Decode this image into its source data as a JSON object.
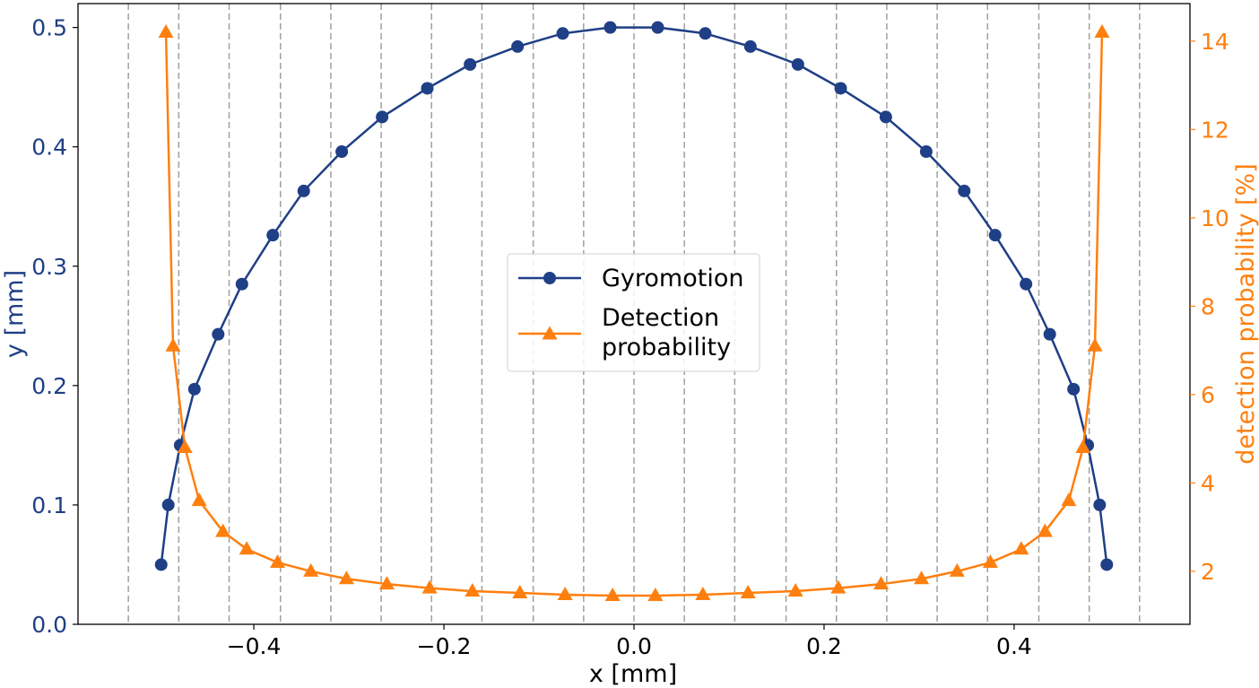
{
  "chart_data": {
    "type": "line",
    "title": "",
    "xlabel": "x [mm]",
    "ylabel": "y [mm]",
    "y2label": "detection probability [%]",
    "xlim": [
      -0.585,
      0.585
    ],
    "ylim": [
      0.0,
      0.52
    ],
    "y2lim": [
      0.8,
      14.85
    ],
    "xticks": [
      -0.4,
      -0.2,
      0.0,
      0.2,
      0.4
    ],
    "xtick_labels": [
      "−0.4",
      "−0.2",
      "0.0",
      "0.2",
      "0.4"
    ],
    "yticks": [
      0.0,
      0.1,
      0.2,
      0.3,
      0.4,
      0.5
    ],
    "ytick_labels": [
      "0.0",
      "0.1",
      "0.2",
      "0.3",
      "0.4",
      "0.5"
    ],
    "y2ticks": [
      2,
      4,
      6,
      8,
      10,
      12,
      14
    ],
    "y2tick_labels": [
      "2",
      "4",
      "6",
      "8",
      "10",
      "12",
      "14"
    ],
    "vlines": [
      -0.532,
      -0.479,
      -0.426,
      -0.372,
      -0.319,
      -0.266,
      -0.213,
      -0.16,
      -0.106,
      -0.053,
      0.0,
      0.053,
      0.106,
      0.16,
      0.213,
      0.266,
      0.319,
      0.372,
      0.426,
      0.479,
      0.532
    ],
    "colors": {
      "gyro": "#1f3f86",
      "detect": "#ff7f0e",
      "vline": "#a0a0a0"
    },
    "legend_position": "center",
    "series": [
      {
        "name": "Gyromotion",
        "axis": "left",
        "marker": "circle",
        "x": [
          -0.4975,
          -0.49,
          -0.4775,
          -0.4625,
          -0.4375,
          -0.4125,
          -0.38,
          -0.3475,
          -0.3075,
          -0.265,
          -0.2175,
          -0.1725,
          -0.1225,
          -0.075,
          -0.025,
          0.025,
          0.075,
          0.1225,
          0.1725,
          0.2175,
          0.265,
          0.3075,
          0.3475,
          0.38,
          0.4125,
          0.4375,
          0.4625,
          0.4775,
          0.49,
          0.4975
        ],
        "y": [
          0.05,
          0.1,
          0.15,
          0.197,
          0.243,
          0.285,
          0.326,
          0.363,
          0.396,
          0.425,
          0.449,
          0.469,
          0.484,
          0.495,
          0.5,
          0.5,
          0.495,
          0.484,
          0.469,
          0.449,
          0.425,
          0.396,
          0.363,
          0.326,
          0.285,
          0.243,
          0.197,
          0.15,
          0.1,
          0.05
        ]
      },
      {
        "name": "Detection probability",
        "axis": "right",
        "marker": "triangle",
        "x": [
          -0.4925,
          -0.485,
          -0.4725,
          -0.4575,
          -0.4325,
          -0.4075,
          -0.375,
          -0.34,
          -0.3025,
          -0.26,
          -0.215,
          -0.17,
          -0.12,
          -0.0725,
          -0.0225,
          0.0225,
          0.0725,
          0.12,
          0.17,
          0.215,
          0.26,
          0.3025,
          0.34,
          0.375,
          0.4075,
          0.4325,
          0.4575,
          0.4725,
          0.485,
          0.4925
        ],
        "y": [
          14.2,
          7.1,
          4.8,
          3.6,
          2.9,
          2.5,
          2.2,
          2.0,
          1.83,
          1.71,
          1.62,
          1.55,
          1.51,
          1.47,
          1.45,
          1.45,
          1.47,
          1.51,
          1.55,
          1.62,
          1.71,
          1.83,
          2.0,
          2.2,
          2.5,
          2.9,
          3.6,
          4.8,
          7.1,
          14.2
        ]
      }
    ],
    "legend": [
      {
        "label_line1": "Gyromotion",
        "label_line2": ""
      },
      {
        "label_line1": "Detection",
        "label_line2": "probability"
      }
    ]
  }
}
